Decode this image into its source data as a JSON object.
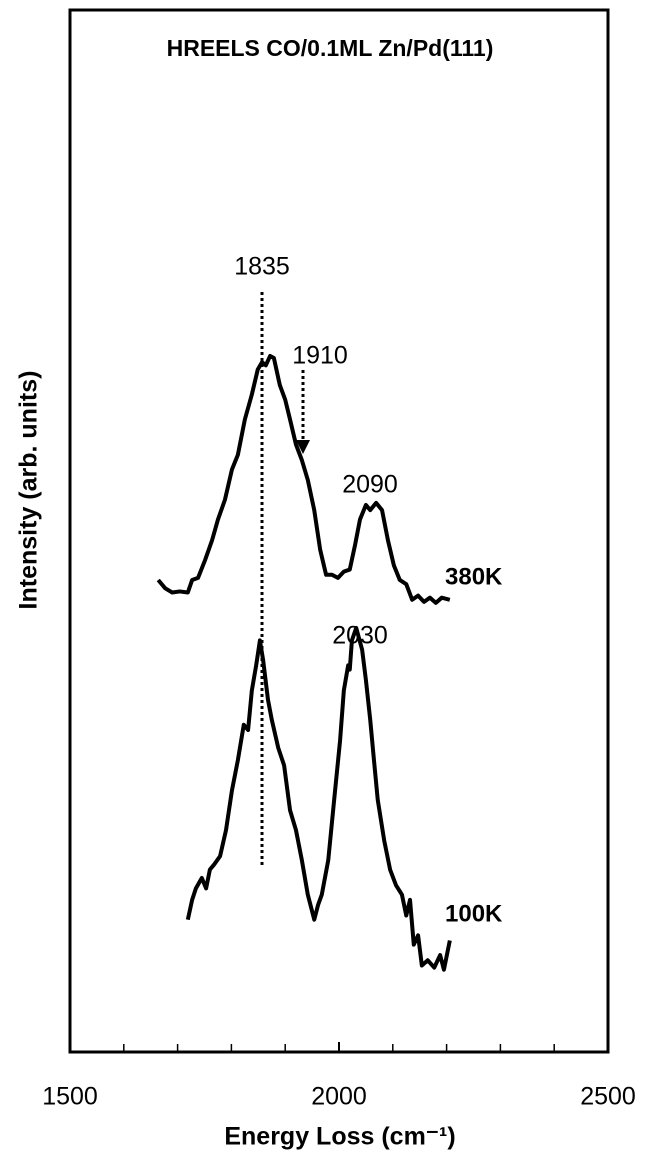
{
  "chart_data": {
    "type": "line",
    "title": "HREELS CO/0.1ML Zn/Pd(111)",
    "x_label": "Energy Loss (cm⁻¹)",
    "y_label": "Intensity (arb. units)",
    "xlim": [
      1500,
      2500
    ],
    "xticks": [
      1500,
      2000,
      2500
    ],
    "xminorticks": [
      1600,
      1700,
      1800,
      1900,
      2100,
      2200,
      2300,
      2400
    ],
    "ylim": [
      0,
      100
    ],
    "annotations": [
      "1835",
      "1910",
      "2090",
      "2030"
    ],
    "series": [
      {
        "name": "380K",
        "color": "#000000",
        "x": [
          1664,
          1677,
          1690,
          1704,
          1719,
          1727,
          1738,
          1751,
          1764,
          1775,
          1788,
          1801,
          1812,
          1825,
          1838,
          1849,
          1857,
          1864,
          1872,
          1879,
          1890,
          1900,
          1909,
          1920,
          1931,
          1942,
          1954,
          1965,
          1976,
          1987,
          1998,
          2009,
          2020,
          2030,
          2039,
          2050,
          2058,
          2069,
          2080,
          2091,
          2102,
          2113,
          2125,
          2136,
          2147,
          2158,
          2169,
          2180,
          2191,
          2206
        ],
        "values": [
          45.3,
          44.5,
          44.1,
          44.2,
          44.1,
          45.3,
          45.5,
          47.2,
          49.1,
          51.1,
          53.0,
          55.9,
          57.3,
          60.7,
          63.1,
          65.5,
          66.2,
          65.9,
          66.8,
          66.6,
          64.0,
          62.6,
          60.7,
          58.3,
          56.8,
          54.9,
          52.0,
          48.2,
          45.8,
          45.8,
          45.5,
          46.1,
          46.3,
          48.7,
          51.1,
          52.5,
          52.0,
          52.7,
          52.0,
          49.1,
          46.7,
          45.3,
          44.9,
          43.4,
          43.8,
          43.2,
          43.6,
          43.1,
          43.6,
          43.4
        ]
      },
      {
        "name": "100K",
        "color": "#000000",
        "x": [
          1719,
          1727,
          1734,
          1745,
          1753,
          1760,
          1768,
          1779,
          1790,
          1801,
          1812,
          1823,
          1831,
          1838,
          1846,
          1853,
          1859,
          1868,
          1875,
          1887,
          1898,
          1909,
          1920,
          1931,
          1942,
          1954,
          1961,
          1968,
          1980,
          1991,
          2002,
          2009,
          2017,
          2020,
          2024,
          2032,
          2043,
          2050,
          2058,
          2065,
          2072,
          2084,
          2095,
          2106,
          2117,
          2125,
          2132,
          2139,
          2147,
          2154,
          2165,
          2177,
          2188,
          2195,
          2206
        ],
        "values": [
          12.7,
          14.6,
          15.7,
          16.7,
          15.7,
          17.5,
          18.0,
          18.8,
          21.3,
          25.1,
          28.0,
          31.4,
          30.9,
          34.7,
          37.1,
          39.5,
          37.6,
          33.8,
          31.9,
          29.2,
          27.5,
          23.2,
          21.3,
          18.4,
          15.1,
          12.7,
          14.1,
          15.1,
          18.4,
          24.2,
          29.9,
          34.7,
          37.1,
          36.7,
          39.5,
          40.7,
          38.6,
          35.7,
          31.9,
          28.0,
          24.2,
          20.3,
          17.5,
          16.0,
          15.1,
          13.1,
          14.6,
          10.3,
          11.2,
          8.3,
          8.8,
          8.1,
          9.3,
          7.9,
          10.7
        ]
      }
    ]
  }
}
